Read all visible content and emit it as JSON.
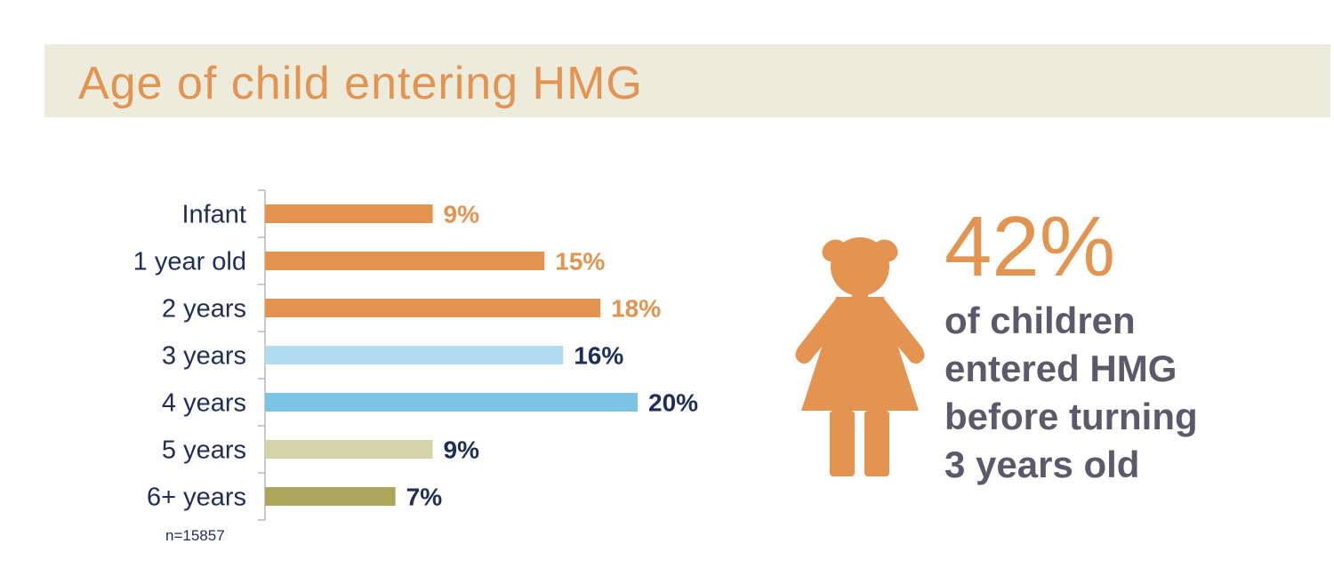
{
  "title": "Age of child entering HMG",
  "chart_data": {
    "type": "bar",
    "orientation": "horizontal",
    "title": "Age of child entering HMG",
    "categories": [
      "Infant",
      "1 year old",
      "2 years",
      "3 years",
      "4 years",
      "5 years",
      "6+ years"
    ],
    "values": [
      9,
      15,
      18,
      16,
      20,
      9,
      7
    ],
    "value_labels": [
      "9%",
      "15%",
      "18%",
      "16%",
      "20%",
      "9%",
      "7%"
    ],
    "bar_colors": [
      "#e39450",
      "#e39450",
      "#e39450",
      "#b2dcef",
      "#7cc4e4",
      "#d6d2aa",
      "#aaa65a"
    ],
    "label_colors": [
      "#e39450",
      "#e39450",
      "#e39450",
      "#1f2d59",
      "#1f2d59",
      "#1f2d59",
      "#1f2d59"
    ],
    "xlim": [
      0,
      20
    ],
    "grid": false,
    "legend": "none",
    "note": "n=15857"
  },
  "stat": {
    "number": "42%",
    "lines": [
      "of children",
      "entered HMG",
      "before turning",
      "3 years old"
    ]
  },
  "icon": "girl-icon",
  "colors": {
    "accent": "#e39450",
    "navy": "#1f2d59",
    "band": "#ecebdc",
    "stat_text": "#5b5a6b"
  }
}
